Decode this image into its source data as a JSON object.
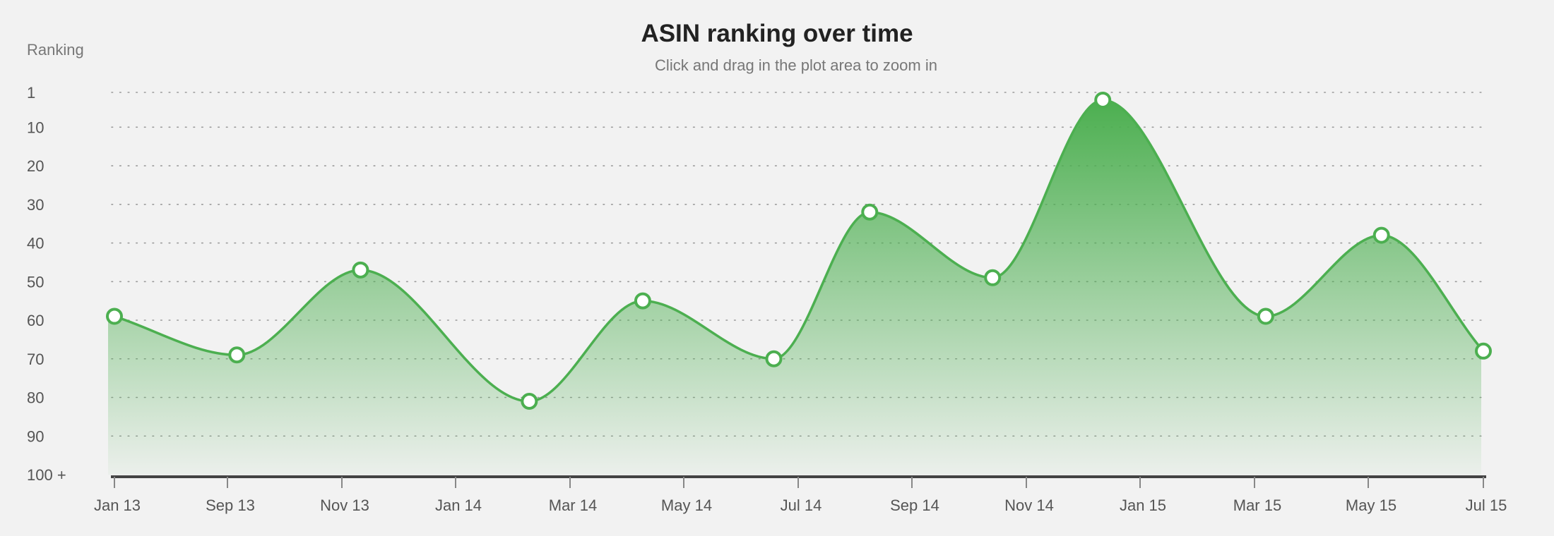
{
  "chart_data": {
    "type": "area",
    "title": "ASIN ranking over time",
    "subtitle": "Click and drag in the plot area to zoom in",
    "ylabel": "Ranking",
    "y_reversed": true,
    "ylim": [
      1,
      100
    ],
    "y_ticks": [
      1,
      10,
      20,
      30,
      40,
      50,
      60,
      70,
      80,
      90,
      100
    ],
    "y_tick_labels": [
      "1",
      "10",
      "20",
      "30",
      "40",
      "50",
      "60",
      "70",
      "80",
      "90",
      "100 +"
    ],
    "x_ticks": [
      "2013-01-01",
      "2013-09-01",
      "2013-11-01",
      "2014-01-01",
      "2014-03-01",
      "2014-05-01",
      "2014-07-01",
      "2014-09-01",
      "2014-11-01",
      "2015-01-01",
      "2015-03-01",
      "2015-05-01",
      "2015-07-01"
    ],
    "x_tick_labels": [
      "Jan 13",
      "Sep 13",
      "Nov 13",
      "Jan 14",
      "Mar 14",
      "May 14",
      "Jul 14",
      "Sep 14",
      "Nov 14",
      "Jan 15",
      "Mar 15",
      "May 15",
      "Jul 15"
    ],
    "grid": true,
    "grid_style": "dotted",
    "color": "#4caf50",
    "series": [
      {
        "x": [
          "2013-01-01",
          "2013-09-06",
          "2013-11-11",
          "2014-02-08",
          "2014-04-09",
          "2014-06-18",
          "2014-08-09",
          "2014-10-14",
          "2014-12-12",
          "2015-03-07",
          "2015-05-08",
          "2015-07-01"
        ],
        "values": [
          59,
          69,
          47,
          81,
          55,
          70,
          32,
          49,
          3,
          59,
          38,
          68
        ]
      }
    ]
  }
}
